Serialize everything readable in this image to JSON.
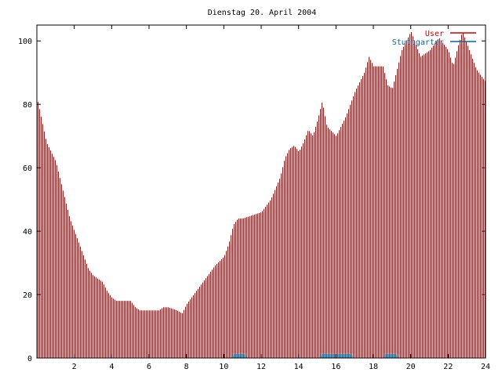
{
  "chart_data": {
    "type": "bar",
    "title": "Dienstag 20. April 2004",
    "xlabel": "",
    "ylabel": "",
    "xlim": [
      0,
      24
    ],
    "ylim": [
      0,
      105
    ],
    "x_ticks": [
      2,
      4,
      6,
      8,
      10,
      12,
      14,
      16,
      18,
      20,
      22,
      24
    ],
    "y_ticks": [
      0,
      20,
      40,
      60,
      80,
      100
    ],
    "x_tick_labels": [
      "2",
      "4",
      "6",
      "8",
      "10",
      "12",
      "14",
      "16",
      "18",
      "20",
      "22",
      "24"
    ],
    "y_tick_labels": [
      "0",
      "20",
      "40",
      "60",
      "80",
      "100"
    ],
    "grid": false,
    "legend_position": "top-right",
    "series": [
      {
        "name": "User",
        "color": "#cc0000",
        "points": [
          [
            0.0,
            82
          ],
          [
            0.5,
            68
          ],
          [
            1.0,
            62
          ],
          [
            1.5,
            50
          ],
          [
            1.75,
            44
          ],
          [
            2.0,
            40
          ],
          [
            2.25,
            36
          ],
          [
            2.5,
            32
          ],
          [
            2.75,
            28
          ],
          [
            3.0,
            26
          ],
          [
            3.5,
            24
          ],
          [
            3.75,
            21
          ],
          [
            4.0,
            19
          ],
          [
            4.25,
            18
          ],
          [
            5.0,
            18
          ],
          [
            5.25,
            16
          ],
          [
            5.5,
            15
          ],
          [
            6.0,
            15
          ],
          [
            6.5,
            15
          ],
          [
            6.75,
            16
          ],
          [
            7.0,
            16
          ],
          [
            7.5,
            15
          ],
          [
            7.75,
            14
          ],
          [
            8.0,
            17
          ],
          [
            8.5,
            21
          ],
          [
            9.0,
            25
          ],
          [
            9.5,
            29
          ],
          [
            10.0,
            32
          ],
          [
            10.25,
            36
          ],
          [
            10.5,
            42
          ],
          [
            10.75,
            44
          ],
          [
            11.0,
            44
          ],
          [
            11.5,
            45
          ],
          [
            12.0,
            46
          ],
          [
            12.5,
            50
          ],
          [
            13.0,
            57
          ],
          [
            13.25,
            63
          ],
          [
            13.5,
            66
          ],
          [
            13.75,
            67
          ],
          [
            14.0,
            65
          ],
          [
            14.25,
            68
          ],
          [
            14.5,
            72
          ],
          [
            14.75,
            70
          ],
          [
            15.0,
            75
          ],
          [
            15.25,
            81
          ],
          [
            15.5,
            73
          ],
          [
            16.0,
            70
          ],
          [
            16.5,
            76
          ],
          [
            17.0,
            84
          ],
          [
            17.5,
            90
          ],
          [
            17.75,
            95
          ],
          [
            18.0,
            92
          ],
          [
            18.5,
            92
          ],
          [
            18.75,
            86
          ],
          [
            19.0,
            85
          ],
          [
            19.5,
            97
          ],
          [
            19.75,
            100
          ],
          [
            20.0,
            103
          ],
          [
            20.25,
            99
          ],
          [
            20.5,
            95
          ],
          [
            21.0,
            97
          ],
          [
            21.5,
            101
          ],
          [
            22.0,
            97
          ],
          [
            22.25,
            92
          ],
          [
            22.5,
            98
          ],
          [
            22.75,
            103
          ],
          [
            23.0,
            99
          ],
          [
            23.25,
            95
          ],
          [
            23.5,
            91
          ],
          [
            23.75,
            89
          ],
          [
            24.0,
            87
          ]
        ]
      },
      {
        "name": "Stuttgarter",
        "color": "#006699",
        "points": [
          [
            0,
            0
          ],
          [
            10.4,
            0
          ],
          [
            10.5,
            1
          ],
          [
            11.1,
            1
          ],
          [
            11.2,
            0
          ],
          [
            15.1,
            0
          ],
          [
            15.2,
            1
          ],
          [
            16.8,
            1
          ],
          [
            16.9,
            0
          ],
          [
            18.5,
            0
          ],
          [
            18.6,
            1
          ],
          [
            19.2,
            1
          ],
          [
            19.3,
            0
          ],
          [
            24,
            0
          ]
        ]
      }
    ]
  }
}
